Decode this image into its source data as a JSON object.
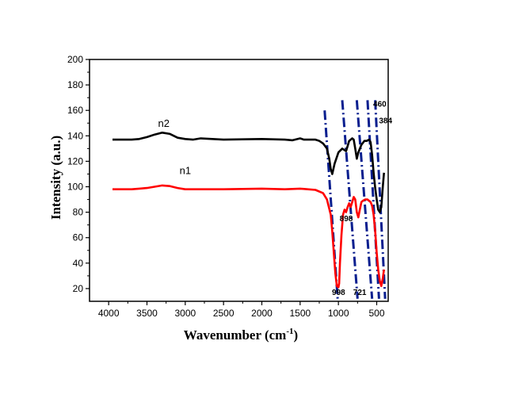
{
  "chart_data": {
    "type": "line",
    "title": "",
    "xlabel": "Wavenumber (cm",
    "xlabel_sup": "-1",
    "xlabel_close": ")",
    "ylabel": "Intensity (a.u.)",
    "xlim": [
      4250,
      350
    ],
    "ylim": [
      10,
      200
    ],
    "x_reversed": true,
    "xticks": [
      4000,
      3500,
      3000,
      2500,
      2000,
      1500,
      1000,
      500
    ],
    "yticks": [
      20,
      40,
      60,
      80,
      100,
      120,
      140,
      160,
      180,
      200
    ],
    "grid": false,
    "legend": "none",
    "series": [
      {
        "name": "n2",
        "color": "#000000",
        "x": [
          3950,
          3700,
          3600,
          3500,
          3400,
          3300,
          3200,
          3100,
          3000,
          2900,
          2800,
          2500,
          2000,
          1700,
          1600,
          1500,
          1450,
          1400,
          1300,
          1250,
          1200,
          1150,
          1120,
          1100,
          1080,
          1050,
          1000,
          950,
          900,
          880,
          860,
          820,
          800,
          780,
          760,
          740,
          700,
          660,
          630,
          600,
          580,
          560,
          540,
          520,
          500,
          480,
          460,
          440,
          420,
          405
        ],
        "y": [
          137,
          137,
          137.5,
          139,
          141,
          142.5,
          141.5,
          138.5,
          137.5,
          137,
          138,
          137,
          137.5,
          137,
          136.5,
          138,
          137,
          137,
          137,
          136,
          134,
          130,
          122,
          114,
          110,
          118,
          127,
          130,
          128,
          132,
          136,
          138,
          137,
          130,
          122,
          127,
          133,
          136,
          136,
          137,
          135,
          125,
          111,
          99,
          90,
          82,
          80,
          84,
          100,
          111
        ]
      },
      {
        "name": "n1",
        "color": "#ff0000",
        "x": [
          3950,
          3700,
          3600,
          3500,
          3400,
          3300,
          3200,
          3100,
          3000,
          2900,
          2500,
          2000,
          1700,
          1500,
          1400,
          1300,
          1200,
          1150,
          1100,
          1080,
          1060,
          1040,
          1020,
          1000,
          990,
          980,
          960,
          940,
          920,
          900,
          880,
          860,
          840,
          820,
          800,
          780,
          760,
          740,
          720,
          700,
          680,
          650,
          620,
          600,
          580,
          560,
          540,
          520,
          500,
          480,
          460,
          440,
          420,
          405
        ],
        "y": [
          98,
          98,
          98.5,
          99,
          100,
          101,
          100.5,
          99,
          98,
          98,
          98,
          98.5,
          98,
          98.5,
          98,
          97.5,
          95,
          90,
          78,
          65,
          48,
          32,
          22,
          21,
          24,
          40,
          62,
          78,
          82,
          80,
          84,
          87,
          84,
          88,
          92,
          90,
          80,
          76,
          82,
          88,
          89,
          90,
          90,
          89,
          88,
          85,
          78,
          65,
          48,
          35,
          26,
          22,
          28,
          35
        ]
      }
    ],
    "series_labels": [
      {
        "text": "n2",
        "x": 3280,
        "y": 147
      },
      {
        "text": "n1",
        "x": 3000,
        "y": 110
      }
    ],
    "annotations": [
      {
        "text": "460",
        "x": 460,
        "y": 163
      },
      {
        "text": "384",
        "x": 384,
        "y": 150
      },
      {
        "text": "898",
        "x": 898,
        "y": 73
      },
      {
        "text": "998",
        "x": 998,
        "y": 15
      },
      {
        "text": "721",
        "x": 721,
        "y": 15
      }
    ],
    "guide_lines": {
      "color": "#0a1f8f",
      "dash": "dash-dot",
      "lines": [
        {
          "x1": 1180,
          "y1": 160,
          "x2": 1010,
          "y2": 12
        },
        {
          "x1": 950,
          "y1": 168,
          "x2": 750,
          "y2": 12
        },
        {
          "x1": 760,
          "y1": 168,
          "x2": 560,
          "y2": 12
        },
        {
          "x1": 620,
          "y1": 168,
          "x2": 470,
          "y2": 12
        },
        {
          "x1": 520,
          "y1": 168,
          "x2": 390,
          "y2": 12
        }
      ]
    }
  }
}
